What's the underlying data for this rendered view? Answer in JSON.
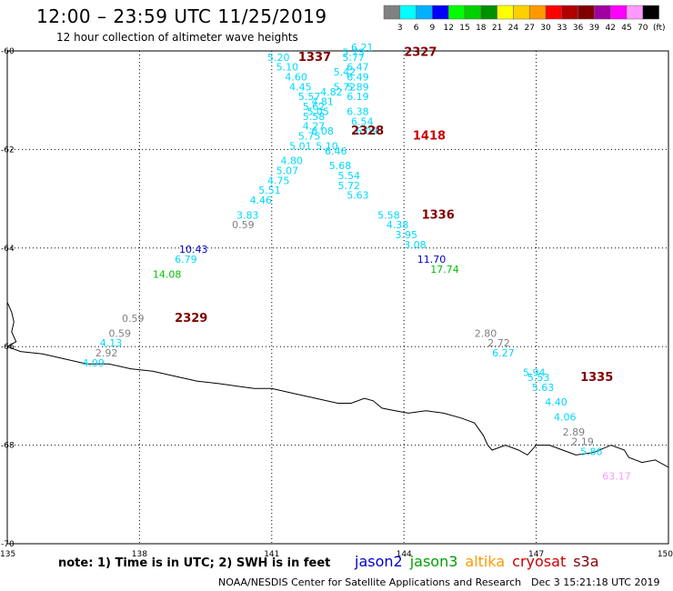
{
  "header": {
    "title": "12:00 – 23:59 UTC 11/25/2019",
    "subtitle": "12 hour collection of altimeter wave heights"
  },
  "scale": {
    "unit": "(ft)",
    "steps": [
      {
        "color": "#808080",
        "label": "3"
      },
      {
        "color": "#00ffff",
        "label": "6"
      },
      {
        "color": "#00b0ff",
        "label": "9"
      },
      {
        "color": "#0000ff",
        "label": "12"
      },
      {
        "color": "#00ff00",
        "label": "15"
      },
      {
        "color": "#00d000",
        "label": "18"
      },
      {
        "color": "#009000",
        "label": "21"
      },
      {
        "color": "#ffff00",
        "label": "24"
      },
      {
        "color": "#ffd000",
        "label": "27"
      },
      {
        "color": "#ff9900",
        "label": "30"
      },
      {
        "color": "#ff0000",
        "label": "33"
      },
      {
        "color": "#b00000",
        "label": "36"
      },
      {
        "color": "#800000",
        "label": "39"
      },
      {
        "color": "#a000a0",
        "label": "42"
      },
      {
        "color": "#ff00ff",
        "label": "45"
      },
      {
        "color": "#ff99ff",
        "label": "70"
      },
      {
        "color": "#000000",
        "label": ""
      }
    ]
  },
  "axes": {
    "lon_ticks": [
      "135",
      "138",
      "141",
      "144",
      "147",
      "150"
    ],
    "lat_ticks": [
      "-60",
      "-62",
      "-64",
      "-66",
      "-68",
      "-70"
    ]
  },
  "colors": {
    "gray": "#808080",
    "cyan": "#00d8ff",
    "blue": "#0000cc",
    "green": "#00c000",
    "red": "#800000",
    "pink": "#ff99ff",
    "brightred": "#cc0000"
  },
  "passes": [
    {
      "label": "1337",
      "lon": 141.6,
      "lat": -60.2,
      "color": "red"
    },
    {
      "label": "2327",
      "lon": 144.0,
      "lat": -60.1,
      "color": "red"
    },
    {
      "label": "2328",
      "lon": 142.8,
      "lat": -61.7,
      "color": "red"
    },
    {
      "label": "1418",
      "lon": 144.2,
      "lat": -61.8,
      "color": "brightred"
    },
    {
      "label": "1336",
      "lon": 144.4,
      "lat": -63.4,
      "color": "red"
    },
    {
      "label": "2329",
      "lon": 138.8,
      "lat": -65.5,
      "color": "red"
    },
    {
      "label": "1335",
      "lon": 148.0,
      "lat": -66.7,
      "color": "red"
    }
  ],
  "observations": [
    {
      "v": "6.21",
      "lon": 142.8,
      "lat": -60.0,
      "c": "cyan"
    },
    {
      "v": "5.20",
      "lon": 140.9,
      "lat": -60.2,
      "c": "cyan"
    },
    {
      "v": "5.73",
      "lon": 142.6,
      "lat": -60.1,
      "c": "cyan"
    },
    {
      "v": "5.77",
      "lon": 142.6,
      "lat": -60.2,
      "c": "cyan"
    },
    {
      "v": "5.10",
      "lon": 141.1,
      "lat": -60.4,
      "c": "cyan"
    },
    {
      "v": "6.47",
      "lon": 142.7,
      "lat": -60.4,
      "c": "cyan"
    },
    {
      "v": "5.42",
      "lon": 142.4,
      "lat": -60.5,
      "c": "cyan"
    },
    {
      "v": "4.60",
      "lon": 141.3,
      "lat": -60.6,
      "c": "cyan"
    },
    {
      "v": "6.49",
      "lon": 142.7,
      "lat": -60.6,
      "c": "cyan"
    },
    {
      "v": "5.72",
      "lon": 142.4,
      "lat": -60.8,
      "c": "cyan"
    },
    {
      "v": "5.89",
      "lon": 142.7,
      "lat": -60.8,
      "c": "cyan"
    },
    {
      "v": "4.45",
      "lon": 141.4,
      "lat": -60.8,
      "c": "cyan"
    },
    {
      "v": "4.82",
      "lon": 142.1,
      "lat": -60.9,
      "c": "cyan"
    },
    {
      "v": "5.57",
      "lon": 141.6,
      "lat": -61.0,
      "c": "cyan"
    },
    {
      "v": "6.19",
      "lon": 142.7,
      "lat": -61.0,
      "c": "cyan"
    },
    {
      "v": "4.81",
      "lon": 141.9,
      "lat": -61.1,
      "c": "cyan"
    },
    {
      "v": "5.62",
      "lon": 141.7,
      "lat": -61.2,
      "c": "cyan"
    },
    {
      "v": "6.38",
      "lon": 142.7,
      "lat": -61.3,
      "c": "cyan"
    },
    {
      "v": "5.05",
      "lon": 141.8,
      "lat": -61.3,
      "c": "cyan"
    },
    {
      "v": "5.58",
      "lon": 141.7,
      "lat": -61.4,
      "c": "cyan"
    },
    {
      "v": "6.54",
      "lon": 142.8,
      "lat": -61.5,
      "c": "cyan"
    },
    {
      "v": "4.27",
      "lon": 141.7,
      "lat": -61.6,
      "c": "cyan"
    },
    {
      "v": "6.08",
      "lon": 141.9,
      "lat": -61.7,
      "c": "cyan"
    },
    {
      "v": "6.09",
      "lon": 142.9,
      "lat": -61.7,
      "c": "cyan"
    },
    {
      "v": "5.75",
      "lon": 141.6,
      "lat": -61.8,
      "c": "cyan"
    },
    {
      "v": "5.10",
      "lon": 142.0,
      "lat": -62.0,
      "c": "cyan"
    },
    {
      "v": "5.01",
      "lon": 141.4,
      "lat": -62.0,
      "c": "cyan"
    },
    {
      "v": "6.46",
      "lon": 142.2,
      "lat": -62.1,
      "c": "cyan"
    },
    {
      "v": "4.80",
      "lon": 141.2,
      "lat": -62.3,
      "c": "cyan"
    },
    {
      "v": "5.68",
      "lon": 142.3,
      "lat": -62.4,
      "c": "cyan"
    },
    {
      "v": "5.07",
      "lon": 141.1,
      "lat": -62.5,
      "c": "cyan"
    },
    {
      "v": "5.54",
      "lon": 142.5,
      "lat": -62.6,
      "c": "cyan"
    },
    {
      "v": "4.75",
      "lon": 140.9,
      "lat": -62.7,
      "c": "cyan"
    },
    {
      "v": "5.72",
      "lon": 142.5,
      "lat": -62.8,
      "c": "cyan"
    },
    {
      "v": "5.51",
      "lon": 140.7,
      "lat": -62.9,
      "c": "cyan"
    },
    {
      "v": "5.63",
      "lon": 142.7,
      "lat": -63.0,
      "c": "cyan"
    },
    {
      "v": "4.46",
      "lon": 140.5,
      "lat": -63.1,
      "c": "cyan"
    },
    {
      "v": "5.58",
      "lon": 143.4,
      "lat": -63.4,
      "c": "cyan"
    },
    {
      "v": "3.83",
      "lon": 140.2,
      "lat": -63.4,
      "c": "cyan"
    },
    {
      "v": "4.38",
      "lon": 143.6,
      "lat": -63.6,
      "c": "cyan"
    },
    {
      "v": "0.59",
      "lon": 140.1,
      "lat": -63.6,
      "c": "gray"
    },
    {
      "v": "3.95",
      "lon": 143.8,
      "lat": -63.8,
      "c": "cyan"
    },
    {
      "v": "3.08",
      "lon": 144.0,
      "lat": -64.0,
      "c": "cyan"
    },
    {
      "v": "10.43",
      "lon": 138.9,
      "lat": -64.1,
      "c": "blue"
    },
    {
      "v": "11.70",
      "lon": 144.3,
      "lat": -64.3,
      "c": "blue"
    },
    {
      "v": "6.79",
      "lon": 138.8,
      "lat": -64.3,
      "c": "cyan"
    },
    {
      "v": "17.74",
      "lon": 144.6,
      "lat": -64.5,
      "c": "green"
    },
    {
      "v": "14.08",
      "lon": 138.3,
      "lat": -64.6,
      "c": "green"
    },
    {
      "v": "0.59",
      "lon": 137.6,
      "lat": -65.5,
      "c": "gray"
    },
    {
      "v": "0.59",
      "lon": 137.3,
      "lat": -65.8,
      "c": "gray"
    },
    {
      "v": "2.80",
      "lon": 145.6,
      "lat": -65.8,
      "c": "gray"
    },
    {
      "v": "4.13",
      "lon": 137.1,
      "lat": -66.0,
      "c": "cyan"
    },
    {
      "v": "2.72",
      "lon": 145.9,
      "lat": -66.0,
      "c": "gray"
    },
    {
      "v": "2.92",
      "lon": 137.0,
      "lat": -66.2,
      "c": "gray"
    },
    {
      "v": "6.27",
      "lon": 146.0,
      "lat": -66.2,
      "c": "cyan"
    },
    {
      "v": "4.09",
      "lon": 136.7,
      "lat": -66.4,
      "c": "cyan"
    },
    {
      "v": "5.94",
      "lon": 146.7,
      "lat": -66.6,
      "c": "cyan"
    },
    {
      "v": "5.53",
      "lon": 146.8,
      "lat": -66.7,
      "c": "cyan"
    },
    {
      "v": "5.63",
      "lon": 146.9,
      "lat": -66.9,
      "c": "cyan"
    },
    {
      "v": "4.40",
      "lon": 147.2,
      "lat": -67.2,
      "c": "cyan"
    },
    {
      "v": "4.06",
      "lon": 147.4,
      "lat": -67.5,
      "c": "cyan"
    },
    {
      "v": "2.89",
      "lon": 147.6,
      "lat": -67.8,
      "c": "gray"
    },
    {
      "v": "2.19",
      "lon": 147.8,
      "lat": -68.0,
      "c": "gray"
    },
    {
      "v": "5.86",
      "lon": 148.0,
      "lat": -68.2,
      "c": "cyan"
    },
    {
      "v": "63.17",
      "lon": 148.5,
      "lat": -68.7,
      "c": "pink"
    }
  ],
  "coastline": [
    [
      135,
      -65.1
    ],
    [
      135.1,
      -65.3
    ],
    [
      135.15,
      -65.5
    ],
    [
      135.1,
      -65.7
    ],
    [
      135.2,
      -65.9
    ],
    [
      135.0,
      -66.0
    ],
    [
      135.3,
      -66.1
    ],
    [
      135.8,
      -66.15
    ],
    [
      136.3,
      -66.25
    ],
    [
      136.8,
      -66.35
    ],
    [
      137.3,
      -66.35
    ],
    [
      137.8,
      -66.45
    ],
    [
      138.3,
      -66.5
    ],
    [
      138.8,
      -66.6
    ],
    [
      139.3,
      -66.7
    ],
    [
      139.8,
      -66.75
    ],
    [
      140.2,
      -66.8
    ],
    [
      140.6,
      -66.85
    ],
    [
      141.0,
      -66.85
    ],
    [
      141.5,
      -66.95
    ],
    [
      142.0,
      -67.05
    ],
    [
      142.5,
      -67.15
    ],
    [
      142.8,
      -67.15
    ],
    [
      143.1,
      -67.05
    ],
    [
      143.3,
      -67.1
    ],
    [
      143.5,
      -67.25
    ],
    [
      143.8,
      -67.3
    ],
    [
      144.1,
      -67.35
    ],
    [
      144.5,
      -67.3
    ],
    [
      144.9,
      -67.35
    ],
    [
      145.3,
      -67.45
    ],
    [
      145.6,
      -67.55
    ],
    [
      145.8,
      -67.8
    ],
    [
      145.9,
      -68.0
    ],
    [
      146.0,
      -68.1
    ],
    [
      146.3,
      -68.0
    ],
    [
      146.6,
      -68.1
    ],
    [
      146.8,
      -68.2
    ],
    [
      147.0,
      -68.0
    ],
    [
      147.3,
      -68.0
    ],
    [
      147.6,
      -68.1
    ],
    [
      147.9,
      -68.2
    ],
    [
      148.3,
      -68.15
    ],
    [
      148.7,
      -68.0
    ],
    [
      149.0,
      -68.1
    ],
    [
      149.1,
      -68.25
    ],
    [
      149.4,
      -68.35
    ],
    [
      149.7,
      -68.3
    ],
    [
      150.0,
      -68.45
    ]
  ],
  "footer": {
    "note": "note: 1) Time is in UTC;  2) SWH is in feet",
    "credit": "NOAA/NESDIS Center for Satellite Applications and Research",
    "date": "Dec  3 15:21:18 UTC 2019",
    "missions": [
      {
        "name": "jason2",
        "color": "#0000cc"
      },
      {
        "name": "jason3",
        "color": "#00a000"
      },
      {
        "name": "altika",
        "color": "#ff9900"
      },
      {
        "name": "cryosat",
        "color": "#cc0000"
      },
      {
        "name": "s3a",
        "color": "#800000"
      }
    ]
  }
}
